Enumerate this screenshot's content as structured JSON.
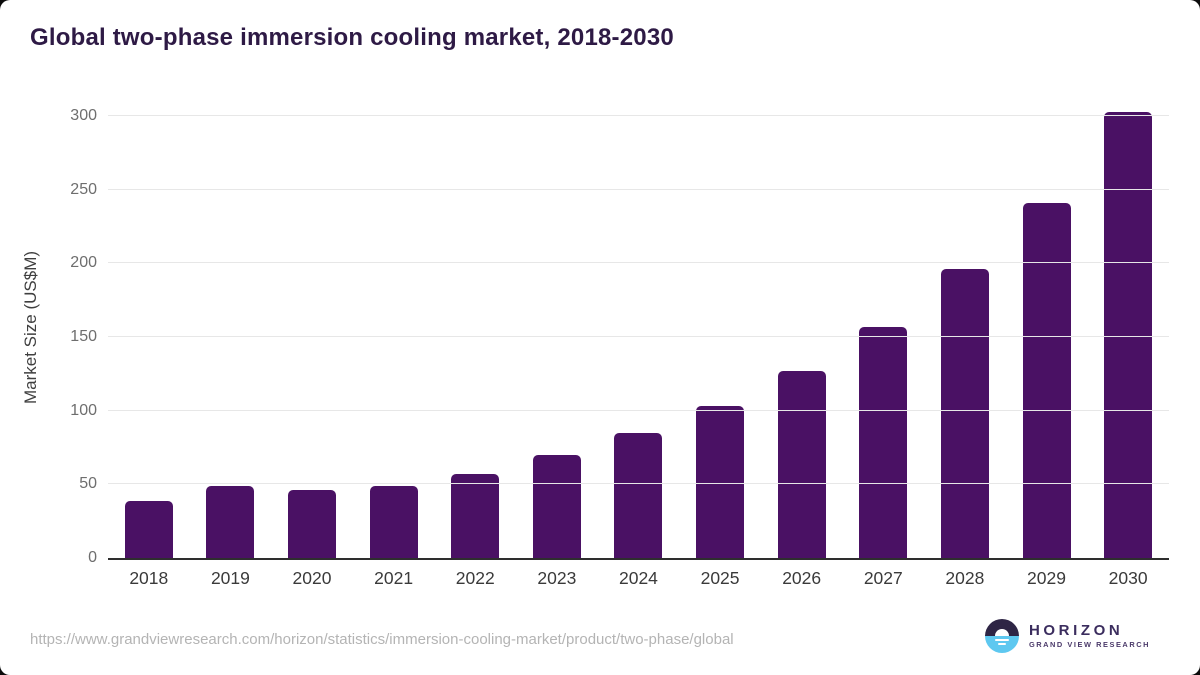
{
  "title": "Global two-phase immersion cooling market, 2018-2030",
  "chart_data": {
    "type": "bar",
    "categories": [
      "2018",
      "2019",
      "2020",
      "2021",
      "2022",
      "2023",
      "2024",
      "2025",
      "2026",
      "2027",
      "2028",
      "2029",
      "2030"
    ],
    "values": [
      39,
      49,
      46,
      49,
      57,
      70,
      85,
      103,
      127,
      157,
      196,
      241,
      303
    ],
    "title": "Global two-phase immersion cooling market, 2018-2030",
    "xlabel": "",
    "ylabel": "Market Size (US$M)",
    "ylim": [
      0,
      300
    ],
    "yticks": [
      0,
      50,
      100,
      150,
      200,
      250,
      300
    ],
    "grid": true,
    "legend": "none",
    "bar_color": "#4a1164"
  },
  "colors": {
    "title": "#2e1a45",
    "bar": "#4a1164",
    "gridline": "#e7e7e7",
    "axis_line": "#2e2e2e",
    "logo_circle_top": "#2e2545",
    "logo_circle_bottom": "#5ec8f0"
  },
  "footer": {
    "source_url": "https://www.grandviewresearch.com/horizon/statistics/immersion-cooling-market/product/two-phase/global",
    "logo": {
      "title": "HORIZON",
      "subtitle": "GRAND VIEW RESEARCH"
    }
  }
}
